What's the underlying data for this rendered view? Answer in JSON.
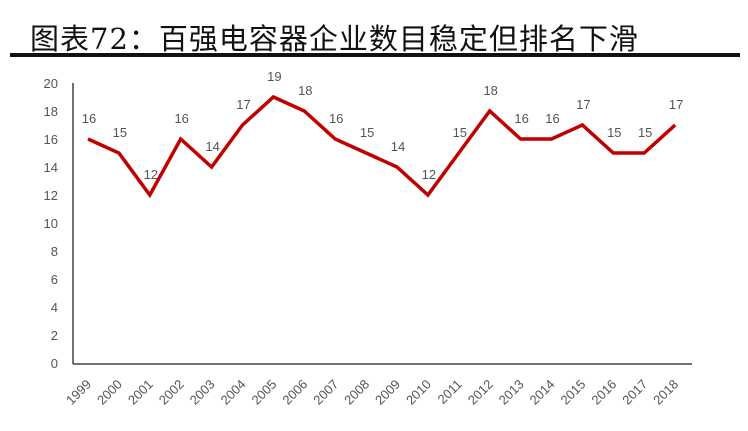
{
  "title": "图表72：百强电容器企业数目稳定但排名下滑",
  "chart_data": {
    "type": "line",
    "title": "",
    "xlabel": "",
    "ylabel": "",
    "categories": [
      "1999",
      "2000",
      "2001",
      "2002",
      "2003",
      "2004",
      "2005",
      "2006",
      "2007",
      "2008",
      "2009",
      "2010",
      "2011",
      "2012",
      "2013",
      "2014",
      "2015",
      "2016",
      "2017",
      "2018"
    ],
    "values": [
      16,
      15,
      12,
      16,
      14,
      17,
      19,
      18,
      16,
      15,
      14,
      12,
      15,
      18,
      16,
      16,
      17,
      15,
      15,
      17
    ],
    "ylim": [
      0,
      20
    ],
    "yticks": [
      0,
      2,
      4,
      6,
      8,
      10,
      12,
      14,
      16,
      18,
      20
    ],
    "grid": false,
    "legend": "none",
    "data_labels": true,
    "line_color": "#c00000"
  }
}
